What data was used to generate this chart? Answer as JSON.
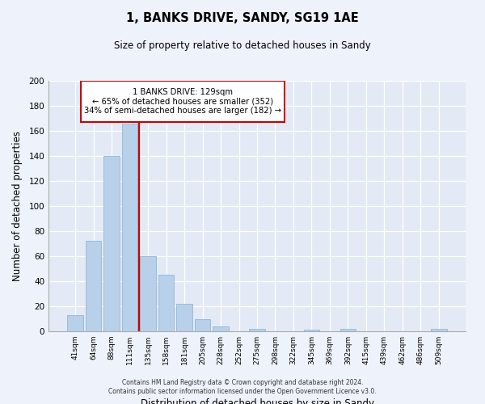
{
  "title": "1, BANKS DRIVE, SANDY, SG19 1AE",
  "subtitle": "Size of property relative to detached houses in Sandy",
  "xlabel": "Distribution of detached houses by size in Sandy",
  "ylabel": "Number of detached properties",
  "bar_labels": [
    "41sqm",
    "64sqm",
    "88sqm",
    "111sqm",
    "135sqm",
    "158sqm",
    "181sqm",
    "205sqm",
    "228sqm",
    "252sqm",
    "275sqm",
    "298sqm",
    "322sqm",
    "345sqm",
    "369sqm",
    "392sqm",
    "415sqm",
    "439sqm",
    "462sqm",
    "486sqm",
    "509sqm"
  ],
  "bar_values": [
    13,
    72,
    140,
    166,
    60,
    45,
    22,
    10,
    4,
    0,
    2,
    0,
    0,
    1,
    0,
    2,
    0,
    0,
    0,
    0,
    2
  ],
  "bar_color": "#b8d0ea",
  "bar_edge_color": "#90b8d8",
  "vline_color": "#cc0000",
  "vline_x_index": 4,
  "annotation_line1": "1 BANKS DRIVE: 129sqm",
  "annotation_line2": "← 65% of detached houses are smaller (352)",
  "annotation_line3": "34% of semi-detached houses are larger (182) →",
  "annotation_box_color": "#cc0000",
  "ylim": [
    0,
    200
  ],
  "yticks": [
    0,
    20,
    40,
    60,
    80,
    100,
    120,
    140,
    160,
    180,
    200
  ],
  "footer1": "Contains HM Land Registry data © Crown copyright and database right 2024.",
  "footer2": "Contains public sector information licensed under the Open Government Licence v3.0.",
  "bg_color": "#eef2fa",
  "plot_bg_color": "#e4eaf5"
}
